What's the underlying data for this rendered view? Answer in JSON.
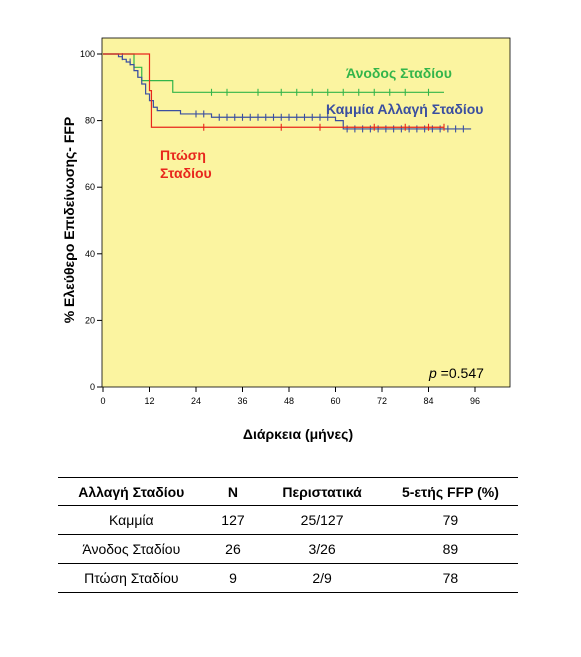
{
  "chart_data": {
    "type": "kaplan-meier",
    "xlabel": "Διάρκεια (μήνες)",
    "ylabel": "% Ελεύθερο Επιδείνωσης- FFP",
    "x_ticks": [
      0,
      12,
      24,
      36,
      48,
      60,
      72,
      84,
      96
    ],
    "y_ticks": [
      0,
      20,
      40,
      60,
      80,
      100
    ],
    "xlim": [
      0,
      100
    ],
    "ylim": [
      0,
      100
    ],
    "background_color": "#fbf4a0",
    "grid": false,
    "annotation": {
      "prefix": "p",
      "text": " =0.547"
    },
    "series": [
      {
        "name": "Άνοδος Σταδίου",
        "color": "#33b54a",
        "steps": [
          [
            0,
            100
          ],
          [
            8,
            96
          ],
          [
            10,
            92
          ],
          [
            18,
            88.5
          ],
          [
            88,
            88.5
          ]
        ],
        "censored": [
          [
            28,
            88.5
          ],
          [
            32,
            88.5
          ],
          [
            40,
            88.5
          ],
          [
            46,
            88.5
          ],
          [
            50,
            88.5
          ],
          [
            54,
            88.5
          ],
          [
            58,
            88.5
          ],
          [
            62,
            88.5
          ],
          [
            66,
            88.5
          ],
          [
            70,
            88.5
          ],
          [
            74,
            88.5
          ],
          [
            78,
            88.5
          ],
          [
            84,
            88.5
          ]
        ]
      },
      {
        "name": "Καμμία Αλλαγή Σταδίου",
        "color": "#3b4fa0",
        "steps": [
          [
            0,
            100
          ],
          [
            4,
            99.2
          ],
          [
            5,
            98.4
          ],
          [
            6,
            97.6
          ],
          [
            7,
            96.8
          ],
          [
            8,
            95
          ],
          [
            9,
            93
          ],
          [
            10,
            91
          ],
          [
            11,
            88
          ],
          [
            12,
            86
          ],
          [
            13,
            84
          ],
          [
            14,
            83
          ],
          [
            20,
            82
          ],
          [
            28,
            81
          ],
          [
            60,
            80
          ],
          [
            62,
            77.5
          ],
          [
            95,
            77.5
          ]
        ],
        "censored": [
          [
            5,
            99.2
          ],
          [
            7,
            97.6
          ],
          [
            9,
            94
          ],
          [
            24,
            82
          ],
          [
            26,
            82
          ],
          [
            30,
            81
          ],
          [
            32,
            81
          ],
          [
            34,
            81
          ],
          [
            36,
            81
          ],
          [
            38,
            81
          ],
          [
            40,
            81
          ],
          [
            42,
            81
          ],
          [
            44,
            81
          ],
          [
            46,
            81
          ],
          [
            48,
            81
          ],
          [
            50,
            81
          ],
          [
            52,
            81
          ],
          [
            54,
            81
          ],
          [
            56,
            81
          ],
          [
            58,
            81
          ],
          [
            63,
            77.5
          ],
          [
            65,
            77.5
          ],
          [
            67,
            77.5
          ],
          [
            69,
            77.5
          ],
          [
            71,
            77.5
          ],
          [
            73,
            77.5
          ],
          [
            75,
            77.5
          ],
          [
            77,
            77.5
          ],
          [
            79,
            77.5
          ],
          [
            81,
            77.5
          ],
          [
            83,
            77.5
          ],
          [
            85,
            77.5
          ],
          [
            87,
            77.5
          ],
          [
            89,
            77.5
          ],
          [
            91,
            77.5
          ],
          [
            93,
            77.5
          ]
        ]
      },
      {
        "name": "Πτώση Σταδίου",
        "color": "#e8261c",
        "steps": [
          [
            0,
            100
          ],
          [
            12,
            100
          ],
          [
            12,
            89
          ],
          [
            12.5,
            78
          ],
          [
            88,
            78
          ]
        ],
        "censored": [
          [
            26,
            78
          ],
          [
            46,
            78
          ],
          [
            56,
            78
          ],
          [
            70,
            78
          ],
          [
            78,
            78
          ],
          [
            84,
            78
          ],
          [
            88,
            78
          ]
        ]
      }
    ]
  },
  "labels": {
    "series_up": "Άνοδος Σταδίου",
    "series_none": "Καμμία Αλλαγή Σταδίου",
    "series_down_line1": "Πτώση",
    "series_down_line2": "Σταδίου"
  },
  "table": {
    "headers": [
      "Αλλαγή Σταδίου",
      "N",
      "Περιστατικά",
      "5-ετής FFP (%)"
    ],
    "rows": [
      [
        "Καμμία",
        "127",
        "25/127",
        "79"
      ],
      [
        "Άνοδος Σταδίου",
        "26",
        "3/26",
        "89"
      ],
      [
        "Πτώση Σταδίου",
        "9",
        "2/9",
        "78"
      ]
    ]
  }
}
